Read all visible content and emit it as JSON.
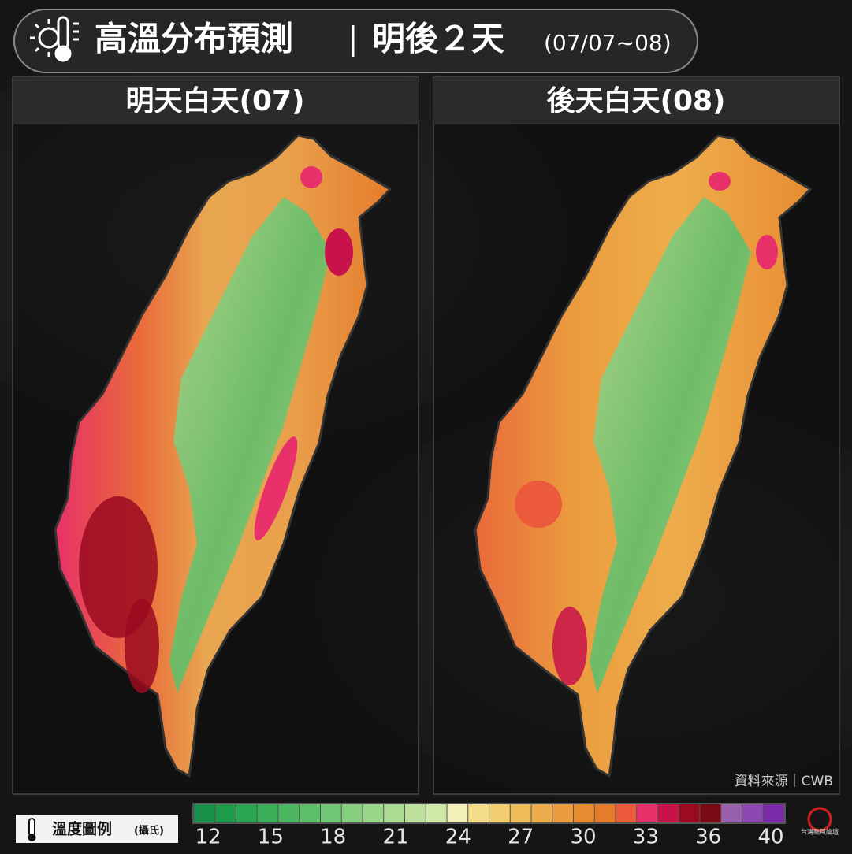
{
  "header": {
    "title": "高溫分布預測",
    "subtitle": "明後２天",
    "date_range": "(07/07~08)"
  },
  "panels": [
    {
      "title": "明天白天(07)"
    },
    {
      "title": "後天白天(08)"
    }
  ],
  "source": "資料來源｜CWB",
  "legend": {
    "label": "溫度圖例",
    "unit": "(攝氏)",
    "ticks": [
      12,
      15,
      18,
      21,
      24,
      27,
      30,
      33,
      36,
      40
    ],
    "colors": [
      "#18904a",
      "#1e9a4a",
      "#2aa552",
      "#3aae58",
      "#4cb662",
      "#5ebe6a",
      "#72c774",
      "#86cf7e",
      "#9ad68a",
      "#acdc94",
      "#bee29e",
      "#d0e8a8",
      "#f2f0b8",
      "#f5dd8c",
      "#f3cd70",
      "#f0bd5c",
      "#eead4c",
      "#eb9c3e",
      "#e88c32",
      "#e57c2c",
      "#ec5a3c",
      "#e8306a",
      "#c8124a",
      "#9a0a20",
      "#7a0a14",
      "#9a60b0",
      "#8a48b0",
      "#7a2aa8"
    ]
  },
  "logo": "台灣颱風論壇"
}
